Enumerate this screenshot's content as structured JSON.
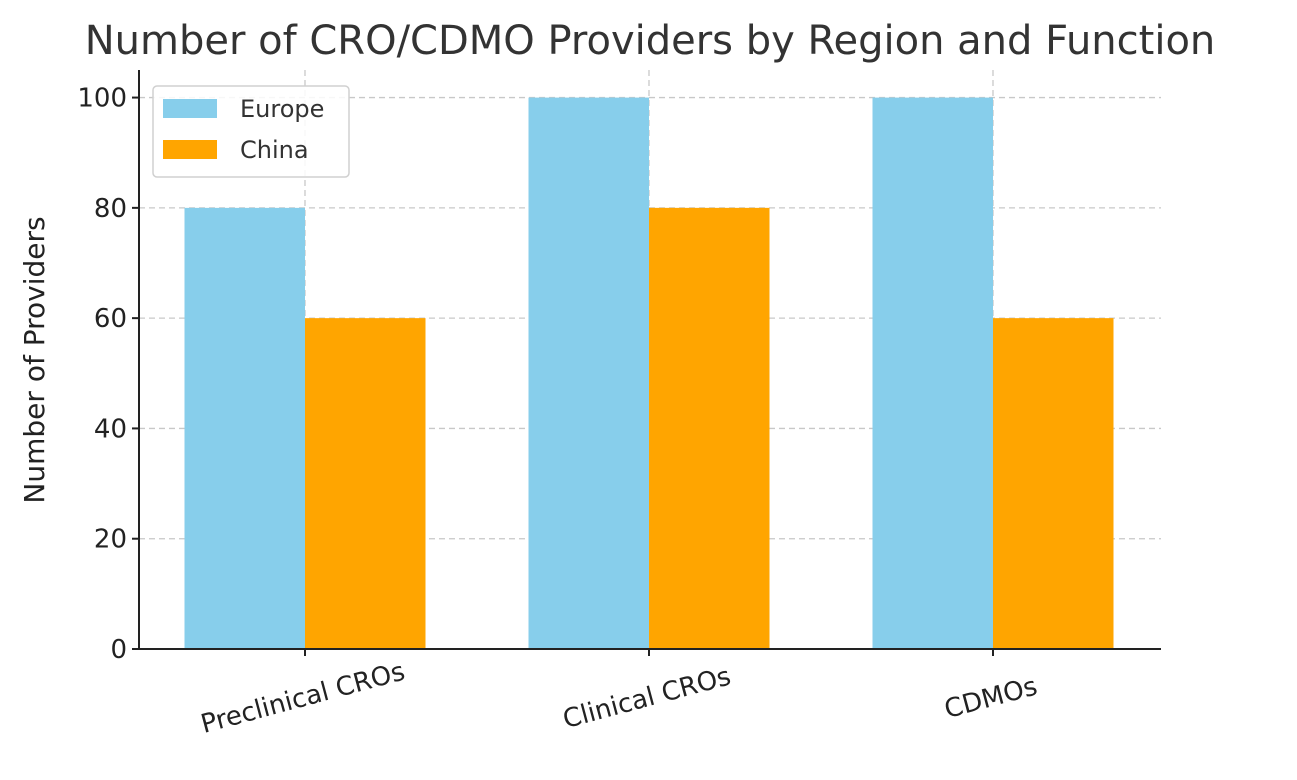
{
  "chart_data": {
    "type": "bar",
    "title": "Number of CRO/CDMO Providers by Region and Function",
    "xlabel": "",
    "ylabel": "Number of Providers",
    "categories": [
      "Preclinical CROs",
      "Clinical CROs",
      "CDMOs"
    ],
    "series": [
      {
        "name": "Europe",
        "values": [
          80,
          100,
          100
        ],
        "color": "#87CEEB"
      },
      {
        "name": "China",
        "values": [
          60,
          80,
          60
        ],
        "color": "#FFA500"
      }
    ],
    "ylim": [
      0,
      105
    ],
    "yticks": [
      0,
      20,
      40,
      60,
      80,
      100
    ],
    "grid": true,
    "legend_position": "top-left"
  }
}
